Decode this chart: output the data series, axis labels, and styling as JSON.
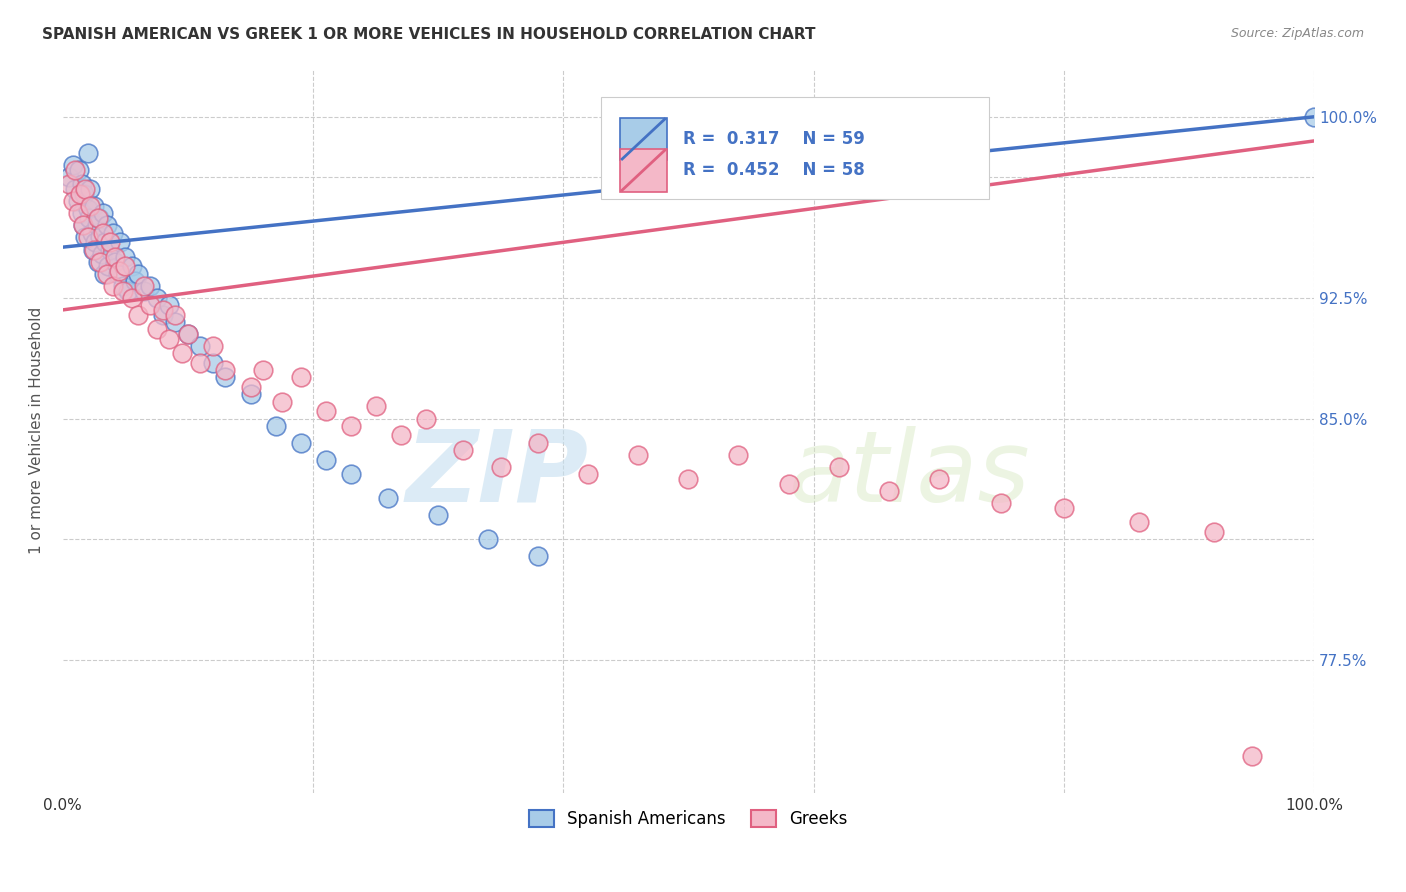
{
  "title": "SPANISH AMERICAN VS GREEK 1 OR MORE VEHICLES IN HOUSEHOLD CORRELATION CHART",
  "source": "Source: ZipAtlas.com",
  "ylabel": "1 or more Vehicles in Household",
  "blue_R": 0.317,
  "blue_N": 59,
  "pink_R": 0.452,
  "pink_N": 58,
  "blue_color": "#a8cce8",
  "pink_color": "#f4b8c8",
  "blue_line_color": "#4472c4",
  "pink_line_color": "#e06080",
  "legend_label_blue": "Spanish Americans",
  "legend_label_pink": "Greeks",
  "watermark_zip": "ZIP",
  "watermark_atlas": "atlas",
  "xlim": [
    0.0,
    1.0
  ],
  "ylim": [
    0.72,
    1.02
  ],
  "grid_y": [
    0.775,
    0.825,
    0.875,
    0.925,
    0.975,
    1.0
  ],
  "grid_x": [
    0.0,
    0.2,
    0.4,
    0.6,
    0.8,
    1.0
  ],
  "ytick_positions": [
    0.775,
    0.825,
    0.875,
    0.925,
    0.975,
    1.0
  ],
  "ytick_labels_right": [
    "77.5%",
    "",
    "85.0%",
    "92.5%",
    "",
    "100.0%"
  ],
  "xtick_positions": [
    0.0,
    0.2,
    0.4,
    0.6,
    0.8,
    1.0
  ],
  "xtick_labels": [
    "0.0%",
    "",
    "",
    "",
    "",
    "100.0%"
  ],
  "blue_line_x0": 0.0,
  "blue_line_y0": 0.946,
  "blue_line_x1": 1.0,
  "blue_line_y1": 1.0,
  "pink_line_x0": 0.0,
  "pink_line_y0": 0.92,
  "pink_line_x1": 1.0,
  "pink_line_y1": 0.99,
  "spanish_x": [
    0.005,
    0.008,
    0.01,
    0.012,
    0.013,
    0.015,
    0.015,
    0.016,
    0.017,
    0.018,
    0.02,
    0.02,
    0.021,
    0.022,
    0.023,
    0.024,
    0.025,
    0.026,
    0.027,
    0.028,
    0.029,
    0.03,
    0.031,
    0.032,
    0.033,
    0.034,
    0.035,
    0.036,
    0.038,
    0.04,
    0.042,
    0.044,
    0.046,
    0.048,
    0.05,
    0.052,
    0.055,
    0.058,
    0.06,
    0.065,
    0.07,
    0.075,
    0.08,
    0.085,
    0.09,
    0.1,
    0.11,
    0.12,
    0.13,
    0.15,
    0.17,
    0.19,
    0.21,
    0.23,
    0.26,
    0.3,
    0.34,
    0.38,
    1.0
  ],
  "spanish_y": [
    0.975,
    0.98,
    0.97,
    0.965,
    0.978,
    0.96,
    0.972,
    0.955,
    0.968,
    0.95,
    0.985,
    0.962,
    0.958,
    0.97,
    0.952,
    0.945,
    0.963,
    0.948,
    0.955,
    0.94,
    0.958,
    0.95,
    0.943,
    0.96,
    0.935,
    0.948,
    0.955,
    0.938,
    0.945,
    0.952,
    0.94,
    0.935,
    0.948,
    0.93,
    0.942,
    0.928,
    0.938,
    0.932,
    0.935,
    0.928,
    0.93,
    0.925,
    0.918,
    0.922,
    0.915,
    0.91,
    0.905,
    0.898,
    0.892,
    0.885,
    0.872,
    0.865,
    0.858,
    0.852,
    0.842,
    0.835,
    0.825,
    0.818,
    1.0
  ],
  "greek_x": [
    0.005,
    0.008,
    0.01,
    0.012,
    0.014,
    0.016,
    0.018,
    0.02,
    0.022,
    0.025,
    0.028,
    0.03,
    0.032,
    0.035,
    0.038,
    0.04,
    0.042,
    0.045,
    0.048,
    0.05,
    0.055,
    0.06,
    0.065,
    0.07,
    0.075,
    0.08,
    0.085,
    0.09,
    0.095,
    0.1,
    0.11,
    0.12,
    0.13,
    0.15,
    0.16,
    0.175,
    0.19,
    0.21,
    0.23,
    0.25,
    0.27,
    0.29,
    0.32,
    0.35,
    0.38,
    0.42,
    0.46,
    0.5,
    0.54,
    0.58,
    0.62,
    0.66,
    0.7,
    0.75,
    0.8,
    0.86,
    0.92,
    0.95
  ],
  "greek_y": [
    0.972,
    0.965,
    0.978,
    0.96,
    0.968,
    0.955,
    0.97,
    0.95,
    0.963,
    0.945,
    0.958,
    0.94,
    0.952,
    0.935,
    0.948,
    0.93,
    0.942,
    0.936,
    0.928,
    0.938,
    0.925,
    0.918,
    0.93,
    0.922,
    0.912,
    0.92,
    0.908,
    0.918,
    0.902,
    0.91,
    0.898,
    0.905,
    0.895,
    0.888,
    0.895,
    0.882,
    0.892,
    0.878,
    0.872,
    0.88,
    0.868,
    0.875,
    0.862,
    0.855,
    0.865,
    0.852,
    0.86,
    0.85,
    0.86,
    0.848,
    0.855,
    0.845,
    0.85,
    0.84,
    0.838,
    0.832,
    0.828,
    0.735
  ]
}
